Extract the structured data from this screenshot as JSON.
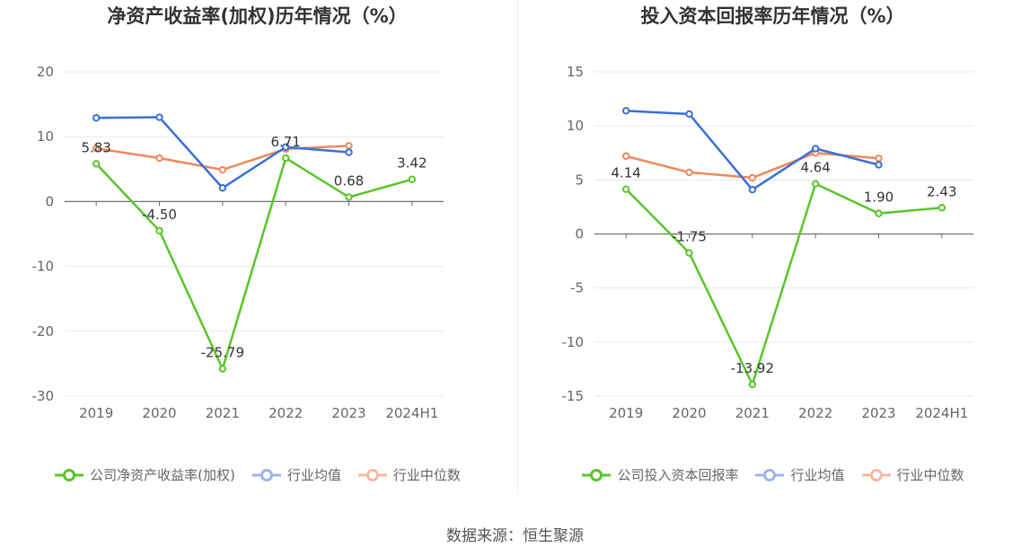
{
  "chart_data": [
    {
      "type": "line",
      "title": "净资产收益率(加权)历年情况（%）",
      "categories": [
        "2019",
        "2020",
        "2021",
        "2022",
        "2023",
        "2024H1"
      ],
      "ylim": [
        -30,
        20
      ],
      "yticks": [
        20,
        10,
        0,
        -10,
        -20,
        -30
      ],
      "grid": true,
      "legend_position": "bottom",
      "series": [
        {
          "name": "公司净资产收益率(加权)",
          "color": "#5bc42a",
          "values": [
            5.83,
            -4.5,
            -25.79,
            6.71,
            0.68,
            3.42
          ],
          "labels": [
            "5.83",
            "-4.50",
            "-25.79",
            "6.71",
            "0.68",
            "3.42"
          ]
        },
        {
          "name": "行业均值",
          "color": "#3b6fd8",
          "values": [
            12.9,
            13.0,
            2.1,
            8.4,
            7.6,
            null
          ]
        },
        {
          "name": "行业中位数",
          "color": "#f0875a",
          "values": [
            8.2,
            6.7,
            4.9,
            8.1,
            8.6,
            null
          ]
        }
      ]
    },
    {
      "type": "line",
      "title": "投入资本回报率历年情况（%）",
      "categories": [
        "2019",
        "2020",
        "2021",
        "2022",
        "2023",
        "2024H1"
      ],
      "ylim": [
        -15,
        15
      ],
      "yticks": [
        15,
        10,
        5,
        0,
        -5,
        -10,
        -15
      ],
      "grid": true,
      "legend_position": "bottom",
      "series": [
        {
          "name": "公司投入资本回报率",
          "color": "#5bc42a",
          "values": [
            4.14,
            -1.75,
            -13.92,
            4.64,
            1.9,
            2.43
          ],
          "labels": [
            "4.14",
            "-1.75",
            "-13.92",
            "4.64",
            "1.90",
            "2.43"
          ]
        },
        {
          "name": "行业均值",
          "color": "#3b6fd8",
          "values": [
            11.4,
            11.1,
            4.1,
            7.9,
            6.4,
            null
          ]
        },
        {
          "name": "行业中位数",
          "color": "#f0875a",
          "values": [
            7.2,
            5.7,
            5.2,
            7.5,
            7.0,
            null
          ]
        }
      ]
    }
  ],
  "source": "数据来源：恒生聚源"
}
